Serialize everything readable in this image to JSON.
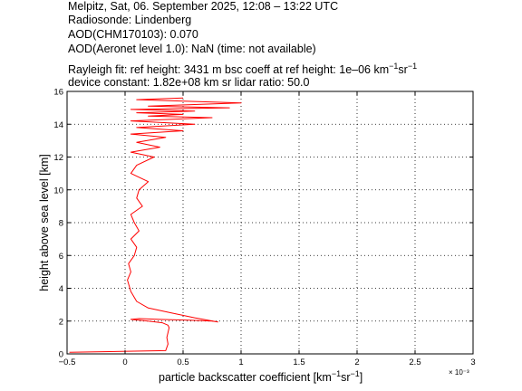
{
  "header": {
    "line1": "Melpitz, Sat, 06. September 2025, 12:08 – 13:22 UTC",
    "line2": "Radiosonde: Lindenberg",
    "line3": "AOD(CHM170103): 0.070",
    "line4": "AOD(Aeronet level 1.0): NaN   (time: not available)",
    "line5_prefix": "Rayleigh fit:     ref height: 3431 m     bsc coeff at ref height: 1e–06 km",
    "line6": "device constant: 1.82e+08 km sr     lidar ratio: 50.0"
  },
  "chart_data": {
    "type": "line",
    "xlabel": "particle backscatter coefficient [km⁻¹sr⁻¹]",
    "xlabel_main": "particle backscatter coefficient [km",
    "ylabel": "height above sea level [km]",
    "x_scale_note": "× 10⁻³",
    "xlim": [
      -0.5,
      3
    ],
    "ylim": [
      0,
      16
    ],
    "xticks": [
      -0.5,
      0,
      0.5,
      1,
      1.5,
      2,
      2.5,
      3
    ],
    "xtick_labels": [
      "−0.5",
      "0",
      "0.5",
      "1",
      "1.5",
      "2",
      "2.5",
      "3"
    ],
    "yticks": [
      0,
      2,
      4,
      6,
      8,
      10,
      12,
      14,
      16
    ],
    "ytick_labels": [
      "0",
      "2",
      "4",
      "6",
      "8",
      "10",
      "12",
      "14",
      "16"
    ],
    "grid": true,
    "series": [
      {
        "color": "#ff0000",
        "x": [
          -0.48,
          0.35,
          0.37,
          0.36,
          0.37,
          0.38,
          0.37,
          0.32,
          0.2,
          0.05,
          0.12,
          0.3,
          0.55,
          0.75,
          0.8,
          0.6,
          0.4,
          0.2,
          0.1,
          0.05,
          0.02,
          0.05,
          0.03,
          0.08,
          0.1,
          0.05,
          0.12,
          0.08,
          0.05,
          0.15,
          0.1,
          0.12,
          0.2,
          0.05,
          0.1,
          0.25,
          0.05,
          0.3,
          0.1,
          0.35,
          0.05,
          0.5,
          0.1,
          0.6,
          0.05,
          0.75,
          0.2,
          0.5,
          0.1,
          0.6,
          0.05,
          0.9,
          0.2,
          1.0,
          0.1,
          0.5
        ],
        "y": [
          0.1,
          0.2,
          0.6,
          1.0,
          1.3,
          1.6,
          1.75,
          1.9,
          2.0,
          2.1,
          2.15,
          2.1,
          2.05,
          2.0,
          1.95,
          2.2,
          2.5,
          2.8,
          3.2,
          3.8,
          4.5,
          5.0,
          5.5,
          6.0,
          6.5,
          7.0,
          7.5,
          8.0,
          8.5,
          9.0,
          9.5,
          10.0,
          10.5,
          11.0,
          11.5,
          12.0,
          12.3,
          12.6,
          12.9,
          13.2,
          13.4,
          13.6,
          13.8,
          14.0,
          14.2,
          14.4,
          14.5,
          14.6,
          14.7,
          14.8,
          14.9,
          15.0,
          15.1,
          15.3,
          15.5,
          15.6
        ]
      }
    ]
  }
}
